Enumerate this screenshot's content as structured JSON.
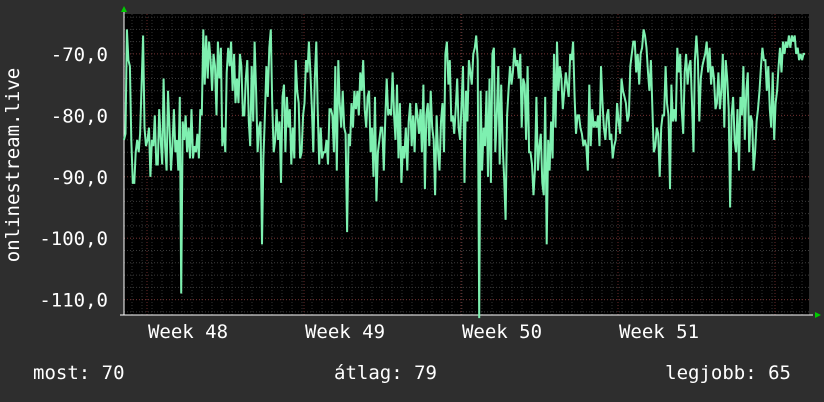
{
  "chart_data": {
    "type": "line",
    "ylabel": "onlinestream.live",
    "x_ticks": [
      "Week 48",
      "Week 49",
      "Week 50",
      "Week 51"
    ],
    "y_ticks": [
      "-70,0",
      "-80,0",
      "-90,0",
      "-100,0",
      "-110,0"
    ],
    "y_tick_values": [
      -70,
      -80,
      -90,
      -100,
      -110
    ],
    "ylim": [
      -112.5,
      -63.5
    ],
    "grid": true,
    "colors": {
      "background": "#2e2e2e",
      "plot": "#000000",
      "line": "#7ef0b0",
      "axis": "#ffffff",
      "arrow": "#00cc00"
    },
    "series": [
      {
        "values": [
          -84,
          -83,
          -66,
          -71,
          -72,
          -84,
          -91,
          -91,
          -86,
          -84,
          -86,
          -83,
          -75,
          -67,
          -82,
          -85,
          -84,
          -82,
          -90,
          -84,
          -85,
          -80,
          -88,
          -88,
          -79,
          -84,
          -88,
          -74,
          -85,
          -89,
          -76,
          -82,
          -89,
          -85,
          -79,
          -86,
          -84,
          -89,
          -77,
          -109,
          -81,
          -84,
          -80,
          -86,
          -82,
          -87,
          -79,
          -87,
          -85,
          -86,
          -83,
          -87,
          -79,
          -80,
          -66,
          -75,
          -67,
          -74,
          -68,
          -71,
          -76,
          -70,
          -72,
          -80,
          -68,
          -74,
          -69,
          -85,
          -82,
          -86,
          -73,
          -69,
          -72,
          -68,
          -76,
          -70,
          -78,
          -74,
          -78,
          -70,
          -72,
          -80,
          -80,
          -74,
          -71,
          -81,
          -85,
          -72,
          -81,
          -68,
          -76,
          -86,
          -82,
          -81,
          -101,
          -87,
          -80,
          -72,
          -77,
          -69,
          -66,
          -78,
          -86,
          -84,
          -79,
          -84,
          -81,
          -91,
          -77,
          -75,
          -86,
          -77,
          -82,
          -79,
          -88,
          -82,
          -87,
          -71,
          -76,
          -78,
          -87,
          -86,
          -80,
          -78,
          -71,
          -73,
          -68,
          -73,
          -79,
          -86,
          -74,
          -68,
          -79,
          -88,
          -82,
          -87,
          -86,
          -86,
          -84,
          -88,
          -79,
          -79,
          -80,
          -86,
          -72,
          -89,
          -71,
          -78,
          -82,
          -76,
          -82,
          -83,
          -99,
          -83,
          -85,
          -78,
          -82,
          -76,
          -79,
          -76,
          -80,
          -73,
          -76,
          -71,
          -79,
          -82,
          -77,
          -76,
          -86,
          -82,
          -90,
          -77,
          -94,
          -86,
          -84,
          -82,
          -82,
          -89,
          -81,
          -74,
          -80,
          -79,
          -80,
          -73,
          -80,
          -84,
          -75,
          -87,
          -78,
          -91,
          -85,
          -87,
          -82,
          -89,
          -81,
          -78,
          -85,
          -80,
          -86,
          -78,
          -80,
          -83,
          -79,
          -86,
          -75,
          -92,
          -80,
          -78,
          -85,
          -76,
          -82,
          -84,
          -93,
          -80,
          -86,
          -89,
          -81,
          -78,
          -86,
          -70,
          -68,
          -75,
          -71,
          -81,
          -80,
          -83,
          -79,
          -74,
          -82,
          -84,
          -78,
          -72,
          -91,
          -76,
          -81,
          -71,
          -73,
          -75,
          -70,
          -69,
          -67,
          -71,
          -113,
          -76,
          -89,
          -82,
          -85,
          -76,
          -90,
          -74,
          -91,
          -70,
          -69,
          -86,
          -80,
          -72,
          -88,
          -75,
          -85,
          -90,
          -97,
          -80,
          -76,
          -72,
          -75,
          -73,
          -69,
          -72,
          -71,
          -74,
          -70,
          -82,
          -74,
          -75,
          -84,
          -72,
          -86,
          -86,
          -88,
          -93,
          -89,
          -77,
          -89,
          -85,
          -83,
          -91,
          -93,
          -77,
          -101,
          -84,
          -89,
          -81,
          -87,
          -70,
          -82,
          -68,
          -76,
          -72,
          -74,
          -79,
          -76,
          -73,
          -75,
          -77,
          -70,
          -71,
          -68,
          -77,
          -83,
          -80,
          -80,
          -82,
          -83,
          -85,
          -84,
          -85,
          -89,
          -75,
          -85,
          -79,
          -82,
          -81,
          -82,
          -80,
          -85,
          -72,
          -78,
          -82,
          -84,
          -80,
          -79,
          -84,
          -83,
          -87,
          -85,
          -84,
          -78,
          -81,
          -83,
          -74,
          -76,
          -77,
          -78,
          -81,
          -80,
          -72,
          -70,
          -68,
          -68,
          -73,
          -70,
          -75,
          -70,
          -69,
          -66,
          -67,
          -69,
          -73,
          -76,
          -71,
          -79,
          -86,
          -85,
          -82,
          -83,
          -90,
          -82,
          -80,
          -80,
          -72,
          -78,
          -80,
          -92,
          -75,
          -81,
          -79,
          -81,
          -69,
          -73,
          -70,
          -79,
          -83,
          -73,
          -70,
          -75,
          -72,
          -71,
          -78,
          -86,
          -71,
          -67,
          -71,
          -81,
          -74,
          -72,
          -71,
          -70,
          -68,
          -73,
          -69,
          -75,
          -72,
          -74,
          -79,
          -78,
          -73,
          -79,
          -76,
          -70,
          -82,
          -71,
          -74,
          -79,
          -95,
          -80,
          -77,
          -84,
          -86,
          -79,
          -89,
          -77,
          -80,
          -72,
          -84,
          -76,
          -73,
          -86,
          -80,
          -81,
          -89,
          -86,
          -81,
          -79,
          -76,
          -72,
          -69,
          -71,
          -71,
          -76,
          -72,
          -79,
          -82,
          -73,
          -84,
          -78,
          -76,
          -72,
          -69,
          -73,
          -68,
          -70,
          -68,
          -69,
          -67,
          -69,
          -67,
          -68,
          -67,
          -70,
          -69,
          -71,
          -70,
          -71,
          -70,
          -70
        ]
      }
    ]
  },
  "stats": {
    "now": "most: 70",
    "avg": "átlag: 79",
    "best": "legjobb: 65"
  }
}
